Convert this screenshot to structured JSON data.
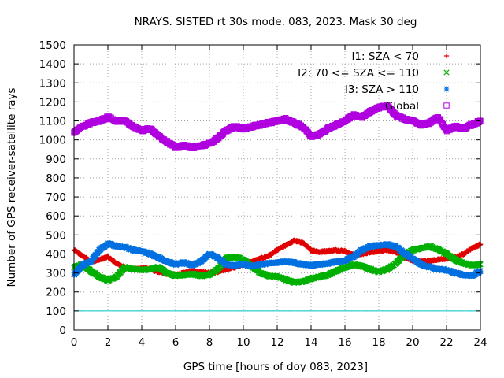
{
  "chart_data": {
    "type": "scatter",
    "title": "NRAYS. SISTED rt 30s mode. 083, 2023. Mask 30 deg",
    "xlabel": "GPS time [hours of doy 083, 2023]",
    "ylabel": "Number of GPS receiver-satellite rays",
    "xlim": [
      0,
      24
    ],
    "ylim": [
      0,
      1500
    ],
    "xticks": [
      "0",
      "2",
      "4",
      "6",
      "8",
      "10",
      "12",
      "14",
      "16",
      "18",
      "20",
      "22",
      "24"
    ],
    "yticks": [
      "0",
      "100",
      "200",
      "300",
      "400",
      "500",
      "600",
      "700",
      "800",
      "900",
      "1000",
      "1100",
      "1200",
      "1300",
      "1400",
      "1500"
    ],
    "grid": true,
    "legend_position": "top-right",
    "threshold_line": {
      "y": 100,
      "color": "#00c8c8"
    },
    "series": [
      {
        "name": "I1: SZA < 70",
        "marker": "plus",
        "color": "#e00000",
        "x": [
          0,
          0.5,
          1,
          1.5,
          2,
          2.5,
          3,
          3.5,
          4,
          4.5,
          5,
          5.5,
          6,
          6.5,
          7,
          7.5,
          8,
          8.5,
          9,
          9.5,
          10,
          10.5,
          11,
          11.5,
          12,
          12.5,
          13,
          13.5,
          14,
          14.5,
          15,
          15.5,
          16,
          16.5,
          17,
          17.5,
          18,
          18.5,
          19,
          19.5,
          20,
          20.5,
          21,
          21.5,
          22,
          22.5,
          23,
          23.5,
          24
        ],
        "values": [
          420,
          390,
          360,
          370,
          385,
          350,
          330,
          320,
          325,
          320,
          305,
          295,
          290,
          300,
          310,
          305,
          300,
          305,
          320,
          330,
          345,
          360,
          375,
          390,
          420,
          445,
          470,
          460,
          420,
          410,
          415,
          420,
          415,
          395,
          400,
          410,
          415,
          420,
          410,
          380,
          365,
          360,
          365,
          370,
          375,
          380,
          400,
          430,
          450
        ]
      },
      {
        "name": "I2: 70 <= SZA <= 110",
        "marker": "cross",
        "color": "#00b000",
        "x": [
          0,
          0.5,
          1,
          1.5,
          2,
          2.5,
          3,
          3.5,
          4,
          4.5,
          5,
          5.5,
          6,
          6.5,
          7,
          7.5,
          8,
          8.5,
          9,
          9.5,
          10,
          10.5,
          11,
          11.5,
          12,
          12.5,
          13,
          13.5,
          14,
          14.5,
          15,
          15.5,
          16,
          16.5,
          17,
          17.5,
          18,
          18.5,
          19,
          19.5,
          20,
          20.5,
          21,
          21.5,
          22,
          22.5,
          23,
          23.5,
          24
        ],
        "values": [
          330,
          345,
          310,
          280,
          260,
          280,
          330,
          320,
          315,
          320,
          330,
          300,
          285,
          290,
          295,
          285,
          290,
          320,
          380,
          385,
          370,
          335,
          300,
          285,
          280,
          265,
          250,
          255,
          270,
          280,
          290,
          310,
          330,
          345,
          335,
          320,
          305,
          320,
          350,
          395,
          420,
          430,
          440,
          425,
          400,
          370,
          350,
          340,
          345
        ]
      },
      {
        "name": "I3: SZA > 110",
        "marker": "star",
        "color": "#0070e0",
        "x": [
          0,
          0.5,
          1,
          1.5,
          2,
          2.5,
          3,
          3.5,
          4,
          4.5,
          5,
          5.5,
          6,
          6.5,
          7,
          7.5,
          8,
          8.5,
          9,
          9.5,
          10,
          10.5,
          11,
          11.5,
          12,
          12.5,
          13,
          13.5,
          14,
          14.5,
          15,
          15.5,
          16,
          16.5,
          17,
          17.5,
          18,
          18.5,
          19,
          19.5,
          20,
          20.5,
          21,
          21.5,
          22,
          22.5,
          23,
          23.5,
          24
        ],
        "values": [
          290,
          340,
          360,
          420,
          455,
          440,
          435,
          420,
          415,
          400,
          380,
          360,
          345,
          355,
          340,
          360,
          400,
          380,
          345,
          340,
          345,
          335,
          345,
          350,
          355,
          360,
          355,
          345,
          340,
          345,
          350,
          360,
          365,
          385,
          420,
          440,
          445,
          450,
          440,
          405,
          375,
          345,
          330,
          320,
          315,
          300,
          290,
          285,
          310
        ]
      },
      {
        "name": "Global",
        "marker": "square",
        "color": "#b000e0",
        "x": [
          0,
          0.5,
          1,
          1.5,
          2,
          2.5,
          3,
          3.5,
          4,
          4.5,
          5,
          5.5,
          6,
          6.5,
          7,
          7.5,
          8,
          8.5,
          9,
          9.5,
          10,
          10.5,
          11,
          11.5,
          12,
          12.5,
          13,
          13.5,
          14,
          14.5,
          15,
          15.5,
          16,
          16.5,
          17,
          17.5,
          18,
          18.5,
          19,
          19.5,
          20,
          20.5,
          21,
          21.5,
          22,
          22.5,
          23,
          23.5,
          24
        ],
        "values": [
          1040,
          1070,
          1090,
          1100,
          1120,
          1100,
          1100,
          1070,
          1050,
          1060,
          1020,
          990,
          960,
          970,
          960,
          970,
          980,
          1010,
          1050,
          1070,
          1060,
          1070,
          1080,
          1090,
          1100,
          1110,
          1090,
          1070,
          1020,
          1030,
          1060,
          1080,
          1100,
          1130,
          1120,
          1150,
          1170,
          1180,
          1130,
          1110,
          1100,
          1080,
          1090,
          1120,
          1050,
          1070,
          1060,
          1080,
          1100
        ]
      }
    ]
  }
}
